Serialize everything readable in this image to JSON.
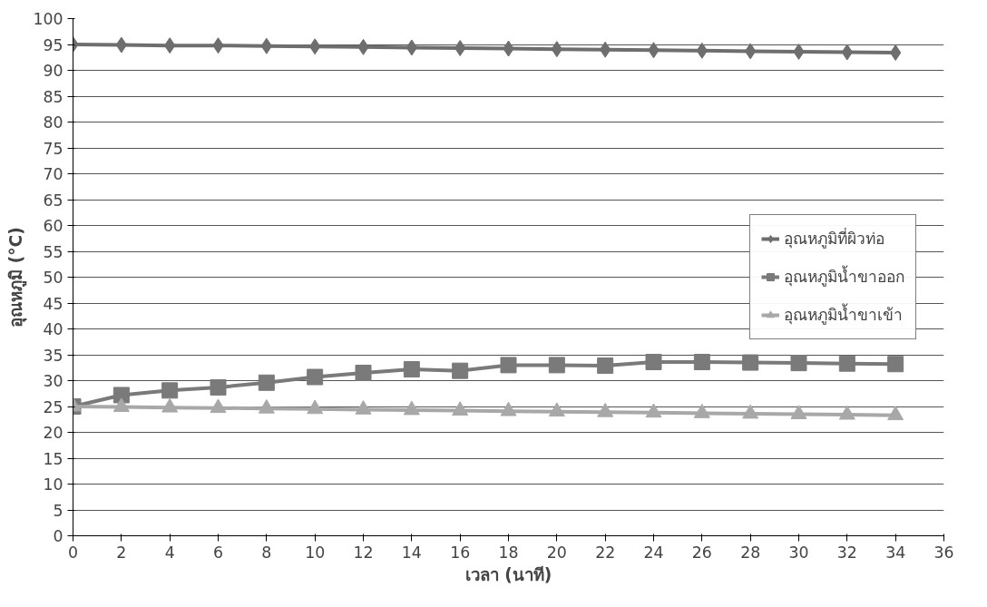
{
  "chart_data": {
    "type": "line",
    "xlabel": "เวลา (นาที)",
    "ylabel": "อุณหภูมิ (°C)",
    "x": [
      0,
      2,
      4,
      6,
      8,
      10,
      12,
      14,
      16,
      18,
      20,
      22,
      24,
      26,
      28,
      30,
      32,
      34
    ],
    "series": [
      {
        "name": "อุณหภูมิที่ผิวท่อ",
        "color": "#6e6e6e",
        "marker": "diamond",
        "values": [
          95,
          94.9,
          94.8,
          94.8,
          94.7,
          94.6,
          94.5,
          94.4,
          94.3,
          94.2,
          94.1,
          94,
          93.9,
          93.8,
          93.7,
          93.6,
          93.5,
          93.4
        ]
      },
      {
        "name": "อุณหภูมิน้ำขาออก",
        "color": "#7a7a7a",
        "marker": "square",
        "values": [
          25,
          27.2,
          28.1,
          28.7,
          29.6,
          30.7,
          31.5,
          32.2,
          31.9,
          33,
          33,
          32.9,
          33.6,
          33.6,
          33.5,
          33.4,
          33.3,
          33.2
        ]
      },
      {
        "name": "อุณหภูมิน้ำขาเข้า",
        "color": "#a8a8a8",
        "marker": "triangle",
        "values": [
          25,
          24.9,
          24.8,
          24.7,
          24.6,
          24.5,
          24.4,
          24.3,
          24.2,
          24.1,
          24,
          23.9,
          23.8,
          23.7,
          23.6,
          23.5,
          23.4,
          23.3
        ]
      }
    ],
    "xlim": [
      0,
      36
    ],
    "xticks": [
      0,
      2,
      4,
      6,
      8,
      10,
      12,
      14,
      16,
      18,
      20,
      22,
      24,
      26,
      28,
      30,
      32,
      34,
      36
    ],
    "ylim": [
      0,
      100
    ],
    "yticks": [
      0,
      5,
      10,
      15,
      20,
      25,
      30,
      35,
      40,
      45,
      50,
      55,
      60,
      65,
      70,
      75,
      80,
      85,
      90,
      95,
      100
    ],
    "grid": "y",
    "legend": "right",
    "line_style": "solid"
  }
}
